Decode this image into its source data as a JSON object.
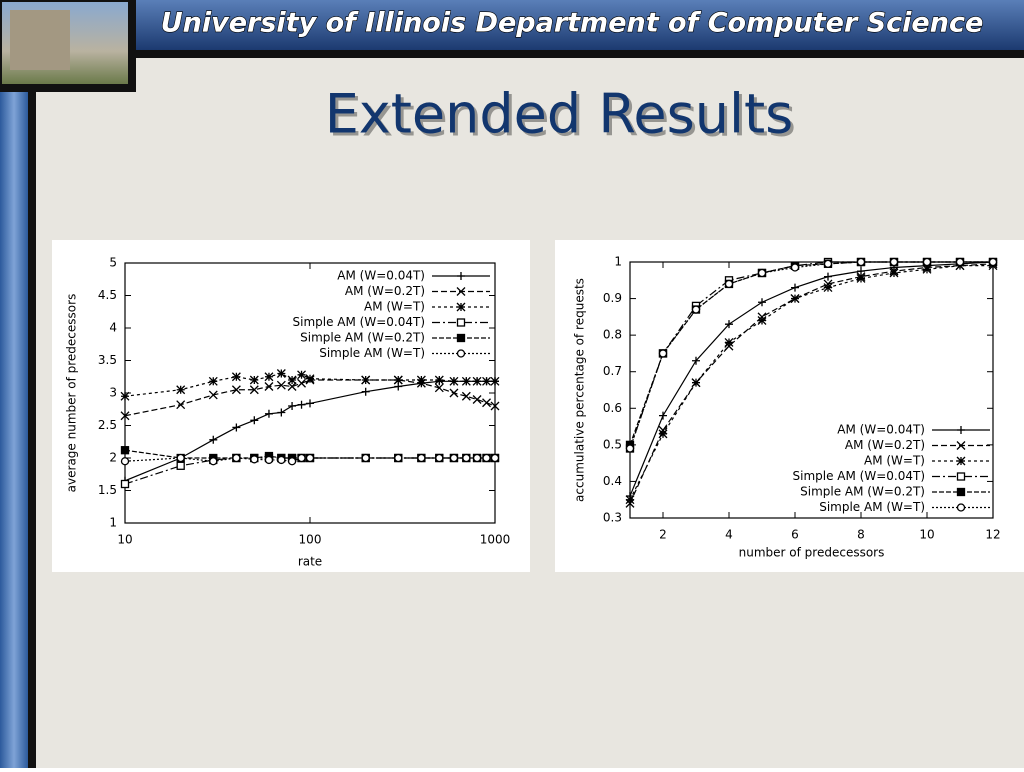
{
  "header": {
    "title": "University of Illinois Department of Computer Science"
  },
  "title": "Extended Results",
  "chart_data": [
    {
      "type": "line",
      "log_x": true,
      "legend": "upper right",
      "xlabel": "rate",
      "ylabel": "average number of predecessors",
      "xlim": [
        10,
        1000
      ],
      "xticks": [
        10,
        100,
        1000
      ],
      "ylim": [
        1,
        5
      ],
      "yticks": [
        1,
        1.5,
        2,
        2.5,
        3,
        3.5,
        4,
        4.5,
        5
      ],
      "x": [
        10,
        20,
        30,
        40,
        50,
        60,
        70,
        80,
        90,
        100,
        200,
        300,
        400,
        500,
        600,
        700,
        800,
        900,
        1000
      ],
      "series": [
        {
          "name": "AM (W=0.04T)",
          "color": "#000000",
          "marker": "plus",
          "dash": "none",
          "values": [
            1.65,
            2.0,
            2.28,
            2.47,
            2.58,
            2.68,
            2.7,
            2.8,
            2.82,
            2.84,
            3.02,
            3.1,
            3.15,
            3.18,
            3.18,
            3.18,
            3.18,
            3.18,
            3.18
          ]
        },
        {
          "name": "AM (W=0.2T)",
          "color": "#000000",
          "marker": "cross",
          "dash": "6,3",
          "values": [
            2.65,
            2.82,
            2.97,
            3.05,
            3.05,
            3.1,
            3.12,
            3.1,
            3.15,
            3.2,
            3.2,
            3.2,
            3.15,
            3.08,
            3.0,
            2.95,
            2.9,
            2.85,
            2.8
          ]
        },
        {
          "name": "AM (W=T)",
          "color": "#000000",
          "marker": "star",
          "dash": "3,3",
          "values": [
            2.95,
            3.05,
            3.18,
            3.25,
            3.2,
            3.25,
            3.3,
            3.2,
            3.28,
            3.22,
            3.2,
            3.2,
            3.2,
            3.2,
            3.18,
            3.18,
            3.18,
            3.18,
            3.18
          ]
        },
        {
          "name": "Simple AM (W=0.04T)",
          "color": "#000000",
          "marker": "square",
          "dash": "8,3,2,3",
          "values": [
            1.6,
            1.88,
            1.97,
            2.0,
            2.0,
            2.0,
            2.0,
            2.0,
            2.0,
            2.0,
            2.0,
            2.0,
            2.0,
            2.0,
            2.0,
            2.0,
            2.0,
            2.0,
            2.0
          ]
        },
        {
          "name": "Simple AM (W=0.2T)",
          "color": "#000000",
          "marker": "filled-square",
          "dash": "5,2",
          "values": [
            2.12,
            2.0,
            2.0,
            2.0,
            2.0,
            2.03,
            2.0,
            2.0,
            2.0,
            2.0,
            2.0,
            2.0,
            2.0,
            2.0,
            2.0,
            2.0,
            2.0,
            2.0,
            2.0
          ]
        },
        {
          "name": "Simple AM (W=T)",
          "color": "#000000",
          "marker": "circle",
          "dash": "2,2",
          "values": [
            1.95,
            2.0,
            1.95,
            2.0,
            1.98,
            1.97,
            1.97,
            1.95,
            2.0,
            2.0,
            2.0,
            2.0,
            2.0,
            2.0,
            2.0,
            2.0,
            2.0,
            2.0,
            2.0
          ]
        }
      ]
    },
    {
      "type": "line",
      "log_x": false,
      "legend": "lower right",
      "xlabel": "number of predecessors",
      "ylabel": "accumulative percentage of requests",
      "xlim": [
        1,
        12
      ],
      "xticks": [
        2,
        4,
        6,
        8,
        10,
        12
      ],
      "ylim": [
        0.3,
        1
      ],
      "yticks": [
        0.3,
        0.4,
        0.5,
        0.6,
        0.7,
        0.8,
        0.9,
        1
      ],
      "x": [
        1,
        2,
        3,
        4,
        5,
        6,
        7,
        8,
        9,
        10,
        11,
        12
      ],
      "series": [
        {
          "name": "AM (W=0.04T)",
          "color": "#000000",
          "marker": "plus",
          "dash": "none",
          "values": [
            0.36,
            0.58,
            0.73,
            0.83,
            0.89,
            0.93,
            0.96,
            0.975,
            0.985,
            0.99,
            0.995,
            1
          ]
        },
        {
          "name": "AM (W=0.2T)",
          "color": "#000000",
          "marker": "cross",
          "dash": "6,3",
          "values": [
            0.34,
            0.54,
            0.67,
            0.77,
            0.85,
            0.9,
            0.94,
            0.96,
            0.975,
            0.985,
            0.99,
            0.995
          ]
        },
        {
          "name": "AM (W=T)",
          "color": "#000000",
          "marker": "star",
          "dash": "3,3",
          "values": [
            0.35,
            0.53,
            0.67,
            0.78,
            0.84,
            0.9,
            0.93,
            0.955,
            0.97,
            0.98,
            0.99,
            0.99
          ]
        },
        {
          "name": "Simple AM (W=0.04T)",
          "color": "#000000",
          "marker": "square",
          "dash": "8,3,2,3",
          "values": [
            0.49,
            0.75,
            0.88,
            0.95,
            0.97,
            0.99,
            1,
            1,
            1,
            1,
            1,
            1
          ]
        },
        {
          "name": "Simple AM (W=0.2T)",
          "color": "#000000",
          "marker": "filled-square",
          "dash": "5,2",
          "values": [
            0.5,
            0.75,
            0.87,
            0.94,
            0.97,
            0.99,
            0.995,
            1,
            1,
            1,
            1,
            1
          ]
        },
        {
          "name": "Simple AM (W=T)",
          "color": "#000000",
          "marker": "circle",
          "dash": "2,2",
          "values": [
            0.49,
            0.75,
            0.87,
            0.94,
            0.97,
            0.985,
            0.995,
            1,
            1,
            1,
            1,
            1
          ]
        }
      ]
    }
  ]
}
